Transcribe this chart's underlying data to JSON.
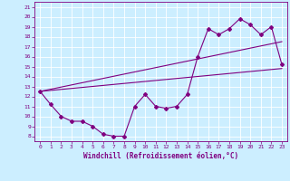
{
  "xlabel": "Windchill (Refroidissement éolien,°C)",
  "bg_color": "#cceeff",
  "line_color": "#800080",
  "grid_color": "#ffffff",
  "xlim": [
    -0.5,
    23.5
  ],
  "ylim": [
    7.5,
    21.5
  ],
  "xticks": [
    0,
    1,
    2,
    3,
    4,
    5,
    6,
    7,
    8,
    9,
    10,
    11,
    12,
    13,
    14,
    15,
    16,
    17,
    18,
    19,
    20,
    21,
    22,
    23
  ],
  "yticks": [
    8,
    9,
    10,
    11,
    12,
    13,
    14,
    15,
    16,
    17,
    18,
    19,
    20,
    21
  ],
  "line1_x": [
    0,
    1,
    2,
    3,
    4,
    5,
    6,
    7,
    8,
    9,
    10,
    11,
    12,
    13,
    14,
    15,
    16,
    17,
    18,
    19,
    20,
    21,
    22,
    23
  ],
  "line1_y": [
    12.5,
    11.2,
    10.0,
    9.5,
    9.5,
    9.0,
    8.2,
    8.0,
    8.0,
    11.0,
    12.2,
    11.0,
    10.8,
    11.0,
    12.2,
    16.0,
    18.8,
    18.2,
    18.8,
    19.8,
    19.2,
    18.2,
    19.0,
    15.2
  ],
  "line2_x": [
    0,
    23
  ],
  "line2_y": [
    12.5,
    14.8
  ],
  "line3_x": [
    0,
    23
  ],
  "line3_y": [
    12.5,
    17.5
  ],
  "marker": "D",
  "markersize": 2,
  "linewidth": 0.8,
  "tick_fontsize": 4.5,
  "xlabel_fontsize": 5.5
}
